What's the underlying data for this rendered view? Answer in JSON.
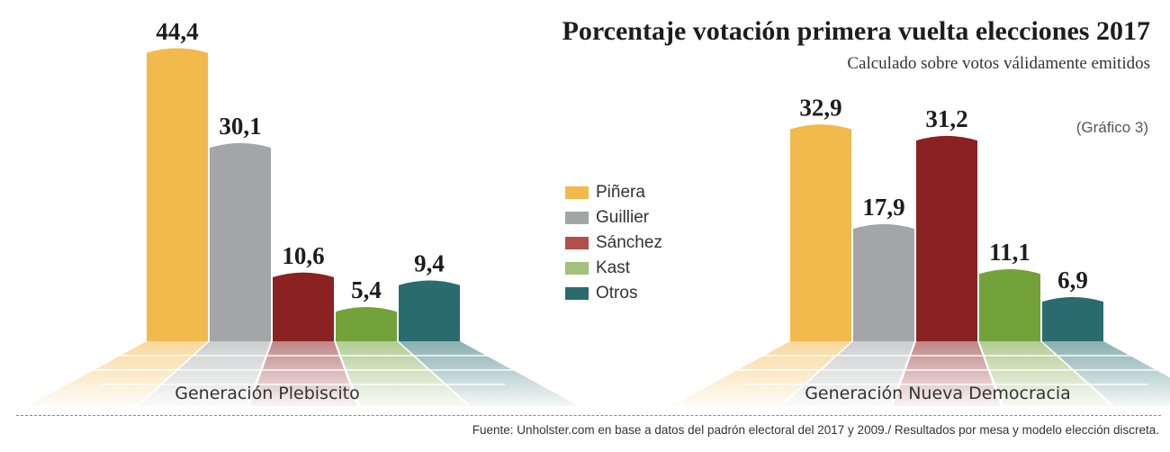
{
  "chart_data": {
    "type": "bar",
    "title": "Porcentaje votación primera vuelta elecciones 2017",
    "subtitle": "Calculado sobre votos válidamente emitidos",
    "note": "(Gráfico 3)",
    "source": "Fuente: Unholster.com en base a datos del padrón electoral del 2017 y 2009./ Resultados por mesa y modelo elección discreta.",
    "ylim": [
      0,
      46
    ],
    "categories": [
      "Generación Plebiscito",
      "Generación Nueva Democracia"
    ],
    "series": [
      {
        "name": "Piñera",
        "color": "#f2b94c",
        "values": [
          44.4,
          32.9
        ],
        "labels": [
          "44,4",
          "32,9"
        ]
      },
      {
        "name": "Guillier",
        "color": "#a4a5a7",
        "values": [
          30.1,
          17.9
        ],
        "labels": [
          "30,1",
          "17,9"
        ]
      },
      {
        "name": "Sánchez",
        "color": "#8a2222",
        "values": [
          10.6,
          31.2
        ],
        "labels": [
          "10,6",
          "31,2"
        ]
      },
      {
        "name": "Kast",
        "color": "#73a23a",
        "values": [
          5.4,
          11.1
        ],
        "labels": [
          "5,4",
          "11,1"
        ]
      },
      {
        "name": "Otros",
        "color": "#2a6c6e",
        "values": [
          9.4,
          6.9
        ],
        "labels": [
          "9,4",
          "6,9"
        ]
      }
    ]
  }
}
